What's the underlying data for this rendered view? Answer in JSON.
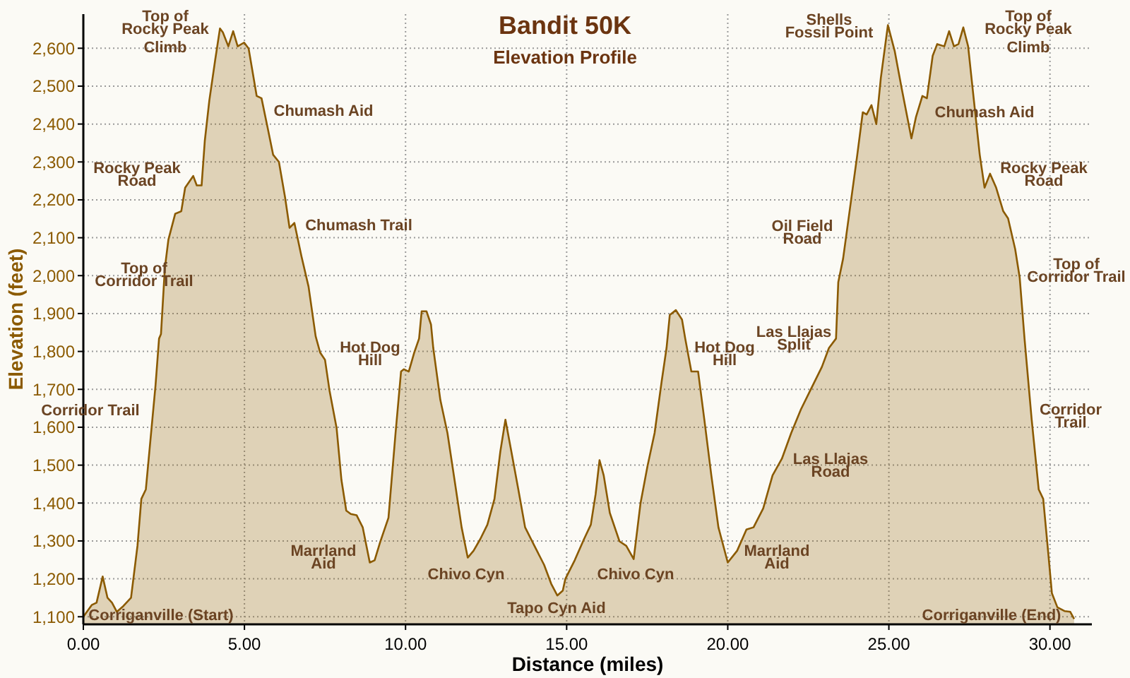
{
  "chart_data": {
    "type": "area",
    "title": "Bandit 50K",
    "subtitle": "Elevation Profile",
    "xlabel": "Distance (miles)",
    "ylabel": "Elevation (feet)",
    "xlim": [
      0,
      31.3
    ],
    "ylim": [
      1080,
      2690
    ],
    "xticks": [
      {
        "value": 0,
        "label": "0.00"
      },
      {
        "value": 5,
        "label": "5.00"
      },
      {
        "value": 10,
        "label": "10.00"
      },
      {
        "value": 15,
        "label": "15.00"
      },
      {
        "value": 20,
        "label": "20.00"
      },
      {
        "value": 25,
        "label": "25.00"
      },
      {
        "value": 30,
        "label": "30.00"
      }
    ],
    "yticks": [
      {
        "value": 1100,
        "label": "1,100"
      },
      {
        "value": 1200,
        "label": "1,200"
      },
      {
        "value": 1300,
        "label": "1,300"
      },
      {
        "value": 1400,
        "label": "1,400"
      },
      {
        "value": 1500,
        "label": "1,500"
      },
      {
        "value": 1600,
        "label": "1,600"
      },
      {
        "value": 1700,
        "label": "1,700"
      },
      {
        "value": 1800,
        "label": "1,800"
      },
      {
        "value": 1900,
        "label": "1,900"
      },
      {
        "value": 2000,
        "label": "2,000"
      },
      {
        "value": 2100,
        "label": "2,100"
      },
      {
        "value": 2200,
        "label": "2,200"
      },
      {
        "value": 2300,
        "label": "2,300"
      },
      {
        "value": 2400,
        "label": "2,400"
      },
      {
        "value": 2500,
        "label": "2,500"
      },
      {
        "value": 2600,
        "label": "2,600"
      }
    ],
    "grid": true,
    "series": [
      {
        "color": "#8b5a00",
        "x": [
          0,
          0.26,
          0.41,
          0.6,
          0.75,
          0.89,
          1.04,
          1.24,
          1.48,
          1.68,
          1.8,
          1.94,
          2.09,
          2.24,
          2.35,
          2.41,
          2.53,
          2.64,
          2.85,
          3.04,
          3.16,
          3.41,
          3.52,
          3.67,
          3.77,
          3.91,
          4.09,
          4.24,
          4.33,
          4.5,
          4.65,
          4.79,
          4.99,
          5.13,
          5.38,
          5.53,
          5.71,
          5.89,
          6.07,
          6.26,
          6.4,
          6.55,
          6.77,
          6.99,
          7.21,
          7.35,
          7.5,
          7.64,
          7.86,
          8.01,
          8.16,
          8.3,
          8.48,
          8.67,
          8.89,
          9.04,
          9.22,
          9.47,
          9.69,
          9.86,
          9.95,
          10.1,
          10.27,
          10.42,
          10.5,
          10.65,
          10.79,
          10.86,
          11.08,
          11.3,
          11.52,
          11.74,
          11.93,
          12.11,
          12.32,
          12.54,
          12.76,
          12.94,
          13.1,
          13.27,
          13.5,
          13.71,
          14,
          14.3,
          14.52,
          14.71,
          14.88,
          14.96,
          15.25,
          15.54,
          15.75,
          15.9,
          16.02,
          16.15,
          16.34,
          16.64,
          16.85,
          17.08,
          17.29,
          17.51,
          17.73,
          17.95,
          18.1,
          18.2,
          18.39,
          18.58,
          18.68,
          18.87,
          19.08,
          19.27,
          19.49,
          19.71,
          20,
          20.29,
          20.58,
          20.8,
          21.1,
          21.39,
          21.68,
          21.97,
          22.27,
          22.56,
          22.92,
          23.14,
          23.36,
          23.43,
          23.58,
          23.8,
          24.02,
          24.19,
          24.31,
          24.46,
          24.61,
          24.75,
          24.97,
          25.18,
          25.4,
          25.6,
          25.7,
          25.84,
          26.04,
          26.18,
          26.36,
          26.5,
          26.72,
          26.87,
          27.02,
          27.16,
          27.31,
          27.46,
          27.6,
          27.82,
          27.97,
          28.14,
          28.33,
          28.55,
          28.7,
          28.92,
          29.06,
          29.21,
          29.43,
          29.65,
          29.79,
          29.94,
          30.06,
          30.23,
          30.45,
          30.63,
          30.75
        ],
        "values": [
          1100,
          1131,
          1137,
          1206,
          1150,
          1137,
          1113,
          1128,
          1150,
          1287,
          1411,
          1436,
          1573,
          1710,
          1834,
          1846,
          2020,
          2095,
          2163,
          2170,
          2232,
          2263,
          2238,
          2238,
          2356,
          2462,
          2568,
          2652,
          2642,
          2605,
          2645,
          2605,
          2615,
          2599,
          2474,
          2468,
          2394,
          2319,
          2300,
          2207,
          2126,
          2139,
          2051,
          1971,
          1840,
          1797,
          1778,
          1697,
          1598,
          1461,
          1380,
          1371,
          1368,
          1336,
          1243,
          1249,
          1299,
          1361,
          1585,
          1747,
          1753,
          1747,
          1797,
          1834,
          1906,
          1906,
          1871,
          1809,
          1672,
          1585,
          1461,
          1336,
          1256,
          1274,
          1305,
          1343,
          1411,
          1535,
          1620,
          1542,
          1436,
          1336,
          1287,
          1237,
          1187,
          1156,
          1169,
          1200,
          1249,
          1305,
          1343,
          1424,
          1513,
          1473,
          1374,
          1299,
          1287,
          1252,
          1398,
          1498,
          1585,
          1722,
          1809,
          1896,
          1909,
          1884,
          1834,
          1747,
          1747,
          1622,
          1473,
          1336,
          1243,
          1274,
          1330,
          1336,
          1386,
          1473,
          1517,
          1585,
          1647,
          1697,
          1759,
          1809,
          1834,
          1983,
          2045,
          2182,
          2319,
          2431,
          2425,
          2450,
          2400,
          2521,
          2661,
          2593,
          2493,
          2406,
          2362,
          2418,
          2474,
          2468,
          2580,
          2611,
          2605,
          2645,
          2605,
          2611,
          2655,
          2605,
          2493,
          2319,
          2232,
          2269,
          2232,
          2170,
          2151,
          2070,
          1995,
          1834,
          1622,
          1436,
          1411,
          1274,
          1162,
          1125,
          1115,
          1113,
          1094
        ]
      }
    ],
    "annotations": [
      "Top of\nRocky Peak\nClimb",
      "Rocky Peak\nRoad",
      "Chumash Aid",
      "Chumash Trail",
      "Top of\nCorridor Trail",
      "Corridor Trail",
      "Hot Dog\nHill",
      "Marrland\nAid",
      "Chivo Cyn",
      "Tapo Cyn Aid",
      "Corriganville (Start)",
      "Chivo Cyn",
      "Hot Dog\nHill",
      "Marrland\nAid",
      "Las Llajas\nRoad",
      "Las Llajas\nSplit",
      "Oil Field\nRoad",
      "Shells\nFossil Point",
      "Chumash Aid",
      "Top of\nRocky Peak\nClimb",
      "Rocky Peak\nRoad",
      "Top of\nCorridor Trail",
      "Corridor\nTrail",
      "Corriganville (End)"
    ]
  }
}
